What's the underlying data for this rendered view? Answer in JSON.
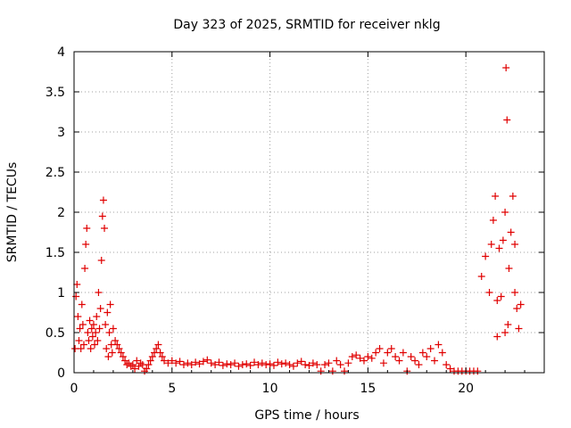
{
  "chart_data": {
    "type": "scatter",
    "title": "Day 323 of 2025, SRMTID for receiver nklg",
    "xlabel": "GPS time / hours",
    "ylabel": "SRMTID / TECUs",
    "xlim": [
      0,
      24
    ],
    "ylim": [
      0,
      4
    ],
    "x_ticks": [
      0,
      5,
      10,
      15,
      20
    ],
    "x_tick_labels": [
      "0",
      "5",
      "10",
      "15",
      "20"
    ],
    "y_ticks": [
      0,
      0.5,
      1,
      1.5,
      2,
      2.5,
      3,
      3.5,
      4
    ],
    "y_tick_labels": [
      "0",
      "0.5",
      "1",
      "1.5",
      "2",
      "2.5",
      "3",
      "3.5",
      "4"
    ],
    "grid": true,
    "marker": "plus",
    "color": "#e00000",
    "series": [
      {
        "name": "SRMTID",
        "points": [
          [
            0.05,
            0.3
          ],
          [
            0.1,
            0.95
          ],
          [
            0.15,
            1.1
          ],
          [
            0.2,
            0.7
          ],
          [
            0.25,
            0.4
          ],
          [
            0.3,
            0.55
          ],
          [
            0.35,
            0.3
          ],
          [
            0.4,
            0.85
          ],
          [
            0.45,
            0.6
          ],
          [
            0.5,
            0.35
          ],
          [
            0.55,
            1.3
          ],
          [
            0.6,
            1.6
          ],
          [
            0.65,
            1.8
          ],
          [
            0.7,
            0.5
          ],
          [
            0.75,
            0.4
          ],
          [
            0.8,
            0.65
          ],
          [
            0.85,
            0.3
          ],
          [
            0.9,
            0.55
          ],
          [
            0.95,
            0.45
          ],
          [
            1.0,
            0.6
          ],
          [
            1.05,
            0.35
          ],
          [
            1.1,
            0.5
          ],
          [
            1.15,
            0.7
          ],
          [
            1.2,
            0.4
          ],
          [
            1.25,
            1.0
          ],
          [
            1.3,
            0.55
          ],
          [
            1.35,
            0.8
          ],
          [
            1.4,
            1.4
          ],
          [
            1.45,
            1.95
          ],
          [
            1.5,
            2.15
          ],
          [
            1.55,
            1.8
          ],
          [
            1.6,
            0.6
          ],
          [
            1.65,
            0.3
          ],
          [
            1.7,
            0.75
          ],
          [
            1.75,
            0.2
          ],
          [
            1.8,
            0.5
          ],
          [
            1.85,
            0.85
          ],
          [
            1.9,
            0.35
          ],
          [
            1.95,
            0.25
          ],
          [
            2.0,
            0.55
          ],
          [
            2.1,
            0.4
          ],
          [
            2.2,
            0.35
          ],
          [
            2.3,
            0.3
          ],
          [
            2.4,
            0.25
          ],
          [
            2.5,
            0.2
          ],
          [
            2.6,
            0.15
          ],
          [
            2.7,
            0.1
          ],
          [
            2.8,
            0.12
          ],
          [
            2.9,
            0.08
          ],
          [
            3.0,
            0.1
          ],
          [
            3.1,
            0.05
          ],
          [
            3.2,
            0.15
          ],
          [
            3.3,
            0.08
          ],
          [
            3.4,
            0.12
          ],
          [
            3.5,
            0.1
          ],
          [
            3.6,
            0.02
          ],
          [
            3.7,
            0.05
          ],
          [
            3.8,
            0.1
          ],
          [
            3.9,
            0.15
          ],
          [
            4.0,
            0.2
          ],
          [
            4.1,
            0.25
          ],
          [
            4.2,
            0.3
          ],
          [
            4.3,
            0.35
          ],
          [
            4.4,
            0.25
          ],
          [
            4.5,
            0.2
          ],
          [
            4.6,
            0.15
          ],
          [
            4.8,
            0.12
          ],
          [
            5.0,
            0.15
          ],
          [
            5.2,
            0.12
          ],
          [
            5.4,
            0.14
          ],
          [
            5.6,
            0.1
          ],
          [
            5.8,
            0.12
          ],
          [
            6.0,
            0.1
          ],
          [
            6.2,
            0.13
          ],
          [
            6.4,
            0.11
          ],
          [
            6.6,
            0.14
          ],
          [
            6.8,
            0.16
          ],
          [
            7.0,
            0.12
          ],
          [
            7.2,
            0.1
          ],
          [
            7.4,
            0.13
          ],
          [
            7.6,
            0.09
          ],
          [
            7.8,
            0.11
          ],
          [
            8.0,
            0.1
          ],
          [
            8.2,
            0.12
          ],
          [
            8.4,
            0.08
          ],
          [
            8.6,
            0.1
          ],
          [
            8.8,
            0.11
          ],
          [
            9.0,
            0.09
          ],
          [
            9.2,
            0.13
          ],
          [
            9.4,
            0.1
          ],
          [
            9.6,
            0.12
          ],
          [
            9.8,
            0.1
          ],
          [
            10.0,
            0.11
          ],
          [
            10.2,
            0.09
          ],
          [
            10.4,
            0.13
          ],
          [
            10.6,
            0.11
          ],
          [
            10.8,
            0.12
          ],
          [
            11.0,
            0.1
          ],
          [
            11.2,
            0.08
          ],
          [
            11.4,
            0.12
          ],
          [
            11.6,
            0.14
          ],
          [
            11.8,
            0.1
          ],
          [
            12.0,
            0.09
          ],
          [
            12.2,
            0.12
          ],
          [
            12.4,
            0.1
          ],
          [
            12.6,
            0.02
          ],
          [
            12.8,
            0.1
          ],
          [
            13.0,
            0.12
          ],
          [
            13.2,
            0.02
          ],
          [
            13.4,
            0.15
          ],
          [
            13.6,
            0.1
          ],
          [
            13.8,
            0.02
          ],
          [
            14.0,
            0.12
          ],
          [
            14.2,
            0.2
          ],
          [
            14.4,
            0.22
          ],
          [
            14.6,
            0.18
          ],
          [
            14.8,
            0.15
          ],
          [
            15.0,
            0.2
          ],
          [
            15.2,
            0.18
          ],
          [
            15.4,
            0.25
          ],
          [
            15.6,
            0.3
          ],
          [
            15.8,
            0.12
          ],
          [
            16.0,
            0.25
          ],
          [
            16.2,
            0.3
          ],
          [
            16.4,
            0.2
          ],
          [
            16.6,
            0.15
          ],
          [
            16.8,
            0.25
          ],
          [
            17.0,
            0.02
          ],
          [
            17.2,
            0.2
          ],
          [
            17.4,
            0.15
          ],
          [
            17.6,
            0.1
          ],
          [
            17.8,
            0.25
          ],
          [
            18.0,
            0.2
          ],
          [
            18.2,
            0.3
          ],
          [
            18.4,
            0.15
          ],
          [
            18.6,
            0.35
          ],
          [
            18.8,
            0.25
          ],
          [
            19.0,
            0.1
          ],
          [
            19.2,
            0.05
          ],
          [
            19.4,
            0.02
          ],
          [
            19.6,
            0.02
          ],
          [
            19.8,
            0.02
          ],
          [
            20.0,
            0.02
          ],
          [
            20.2,
            0.02
          ],
          [
            20.4,
            0.02
          ],
          [
            20.6,
            0.02
          ],
          [
            20.8,
            1.2
          ],
          [
            21.0,
            1.45
          ],
          [
            21.2,
            1.0
          ],
          [
            21.3,
            1.6
          ],
          [
            21.4,
            1.9
          ],
          [
            21.5,
            2.2
          ],
          [
            21.6,
            0.45
          ],
          [
            21.7,
            1.55
          ],
          [
            21.8,
            0.95
          ],
          [
            21.9,
            1.65
          ],
          [
            22.0,
            2.0
          ],
          [
            22.05,
            3.8
          ],
          [
            22.1,
            3.15
          ],
          [
            22.15,
            0.6
          ],
          [
            22.2,
            1.3
          ],
          [
            22.3,
            1.75
          ],
          [
            22.4,
            2.2
          ],
          [
            22.5,
            1.0
          ],
          [
            22.6,
            0.8
          ],
          [
            22.7,
            0.55
          ],
          [
            22.8,
            0.85
          ],
          [
            22.5,
            1.6
          ],
          [
            21.6,
            0.9
          ],
          [
            22.0,
            0.5
          ]
        ]
      }
    ]
  }
}
